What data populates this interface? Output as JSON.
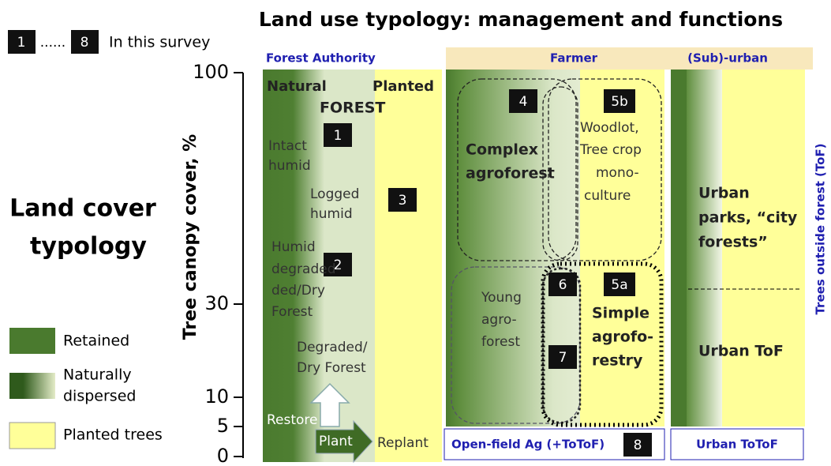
{
  "title": "Land use typology: management and functions",
  "survey_legend": {
    "first": "1",
    "dots": "......",
    "last": "8",
    "label": "In this survey"
  },
  "land_cover": [
    "Land cover",
    "typology"
  ],
  "y_axis": {
    "label": "Tree canopy cover, %",
    "ticks": [
      100,
      30,
      10,
      5,
      0
    ]
  },
  "legend": [
    {
      "lines": [
        "Retained"
      ]
    },
    {
      "lines": [
        "Naturally",
        "dispersed"
      ]
    },
    {
      "lines": [
        "Planted trees"
      ]
    }
  ],
  "headers": {
    "forest": "Forest Authority",
    "farmer": "Farmer",
    "urban": "(Sub)-urban"
  },
  "forest": {
    "natural": "Natural",
    "planted": "Planted",
    "forest": "FOREST",
    "badges": [
      "1",
      "2",
      "3"
    ],
    "intact": [
      "Intact",
      "humid"
    ],
    "logged": [
      "Logged",
      "humid"
    ],
    "humid_degraded": [
      "Humid",
      "degraded-",
      "ded/Dry",
      "Forest"
    ],
    "degraded": [
      "Degraded/",
      "Dry Forest"
    ],
    "restore": "Restore",
    "plant": "Plant",
    "replant": "Replant"
  },
  "farmer": {
    "badges": {
      "b4": "4",
      "b5b": "5b",
      "b6": "6",
      "b5a": "5a",
      "b7": "7",
      "b8": "8"
    },
    "complex": [
      "Complex",
      "agroforest"
    ],
    "woodlot": [
      "Woodlot,",
      "Tree crop",
      "mono-",
      "culture"
    ],
    "young": [
      "Young",
      "agro-",
      "forest"
    ],
    "simple": [
      "Simple",
      "agrofo-",
      "restry"
    ],
    "open_field": "Open-field Ag (+ToToF)"
  },
  "urban": {
    "parks": [
      "Urban",
      "parks, “city",
      "forests”"
    ],
    "tof": "Urban ToF",
    "totof": "Urban ToToF",
    "side": "Trees outside forest (ToF)"
  }
}
